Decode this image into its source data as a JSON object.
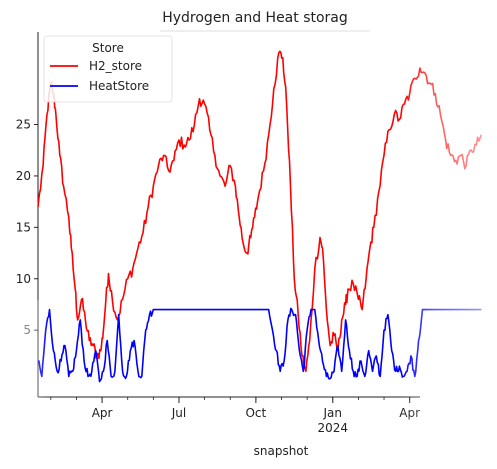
{
  "chart_data": {
    "type": "line",
    "title": "Hydrogen and Heat storag",
    "xlabel": "snapshot",
    "ylabel": "",
    "ylim": [
      -1.5,
      34
    ],
    "xlim": [
      0,
      17.4
    ],
    "x_ticks": [
      {
        "pos": 2.5,
        "label": "Apr",
        "sub": ""
      },
      {
        "pos": 5.5,
        "label": "Jul",
        "sub": ""
      },
      {
        "pos": 8.5,
        "label": "Oct",
        "sub": ""
      },
      {
        "pos": 11.5,
        "label": "Jan",
        "sub": "2024"
      },
      {
        "pos": 14.5,
        "label": "Apr",
        "sub": ""
      }
    ],
    "y_ticks": [
      5,
      10,
      15,
      20,
      25
    ],
    "legend": {
      "title": "Store",
      "placement": "top-left"
    },
    "series": [
      {
        "name": "H2_store",
        "color": "#ff0000",
        "x": [
          0.0,
          0.2,
          0.35,
          0.5,
          0.6,
          0.7,
          0.85,
          1.0,
          1.2,
          1.3,
          1.45,
          1.55,
          1.7,
          1.85,
          2.0,
          2.15,
          2.3,
          2.45,
          2.55,
          2.65,
          2.75,
          2.9,
          3.1,
          3.3,
          3.5,
          3.7,
          3.9,
          4.1,
          4.3,
          4.5,
          4.7,
          4.9,
          5.1,
          5.3,
          5.5,
          5.7,
          5.9,
          6.1,
          6.3,
          6.5,
          6.7,
          6.9,
          7.1,
          7.3,
          7.5,
          7.7,
          7.85,
          8.0,
          8.15,
          8.3,
          8.45,
          8.6,
          8.8,
          9.0,
          9.2,
          9.4,
          9.55,
          9.7,
          9.85,
          10.0,
          10.15,
          10.3,
          10.45,
          10.6,
          10.8,
          11.0,
          11.1,
          11.25,
          11.4,
          11.55,
          11.7,
          11.85,
          12.0,
          12.1,
          12.3,
          12.5,
          12.65,
          12.8,
          12.95,
          13.1,
          13.3,
          13.5,
          13.7,
          13.9,
          14.1,
          14.3,
          14.5,
          14.7,
          14.9,
          15.1,
          15.3,
          15.5,
          15.7,
          15.9,
          16.1,
          16.3,
          16.5,
          16.7,
          16.9,
          17.1,
          17.3
        ],
        "values": [
          17,
          21,
          26,
          29,
          28,
          26,
          22,
          19,
          16,
          13,
          9,
          6,
          8,
          6,
          4,
          3.5,
          2.5,
          3,
          5,
          8,
          10.5,
          8,
          6,
          8,
          10,
          11,
          13,
          14.5,
          17,
          19,
          21,
          22,
          20.5,
          21.5,
          23.5,
          23,
          23.5,
          25,
          27.5,
          27,
          24.5,
          22,
          20,
          19,
          21,
          19,
          16,
          13.5,
          12.5,
          14,
          16,
          18,
          20.5,
          24,
          28.5,
          32,
          31.5,
          27,
          19,
          10,
          6.5,
          2.5,
          1,
          4,
          11,
          14,
          13,
          7,
          3.5,
          4.5,
          3,
          6,
          7.5,
          9,
          9.5,
          8,
          7,
          10,
          13,
          15,
          18.5,
          22,
          24.5,
          26,
          25.5,
          27,
          28,
          29.5,
          30.5,
          30,
          29,
          28,
          26,
          23.5,
          22,
          21.5,
          22,
          21,
          22.5,
          23,
          24
        ]
      },
      {
        "name": "HeatStore",
        "color": "#0000ff",
        "x": [
          0.0,
          0.15,
          0.3,
          0.45,
          0.6,
          0.75,
          0.9,
          1.05,
          1.2,
          1.35,
          1.5,
          1.65,
          1.8,
          1.95,
          2.1,
          2.25,
          2.4,
          2.55,
          2.7,
          2.85,
          3.0,
          3.15,
          3.3,
          3.45,
          3.6,
          3.75,
          3.9,
          4.05,
          4.2,
          4.35,
          4.5,
          4.75,
          5.0,
          6.0,
          7.0,
          8.0,
          8.5,
          9.0,
          9.15,
          9.3,
          9.45,
          9.6,
          9.75,
          9.9,
          10.05,
          10.2,
          10.35,
          10.5,
          10.65,
          10.8,
          10.95,
          11.1,
          11.25,
          11.4,
          11.55,
          11.7,
          11.85,
          12.0,
          12.15,
          12.3,
          12.45,
          12.6,
          12.75,
          12.9,
          13.05,
          13.2,
          13.35,
          13.5,
          13.65,
          13.8,
          13.95,
          14.1,
          14.25,
          14.4,
          14.55,
          14.7,
          14.85,
          15.0,
          15.5,
          16.0,
          16.5,
          17.0,
          17.3
        ],
        "values": [
          2,
          0.5,
          5,
          7,
          3,
          1,
          2,
          3.5,
          0.5,
          1,
          3,
          6,
          2,
          0.5,
          1,
          3,
          0,
          1,
          4,
          0.5,
          1,
          6.5,
          1,
          0.5,
          3,
          4,
          1,
          0.5,
          5,
          6.5,
          7,
          7,
          7,
          7,
          7,
          7,
          7,
          7,
          5,
          3,
          1,
          2,
          6,
          7,
          6.5,
          3,
          1,
          5,
          7,
          7,
          4,
          2,
          0.5,
          0.3,
          1,
          3.5,
          1,
          6,
          3,
          1,
          0.5,
          2,
          0.5,
          3,
          1,
          2.5,
          0.5,
          5,
          6.5,
          3,
          1,
          1.5,
          0.5,
          1,
          2.5,
          0.5,
          4,
          7,
          7,
          7,
          7,
          7,
          7
        ]
      }
    ]
  }
}
